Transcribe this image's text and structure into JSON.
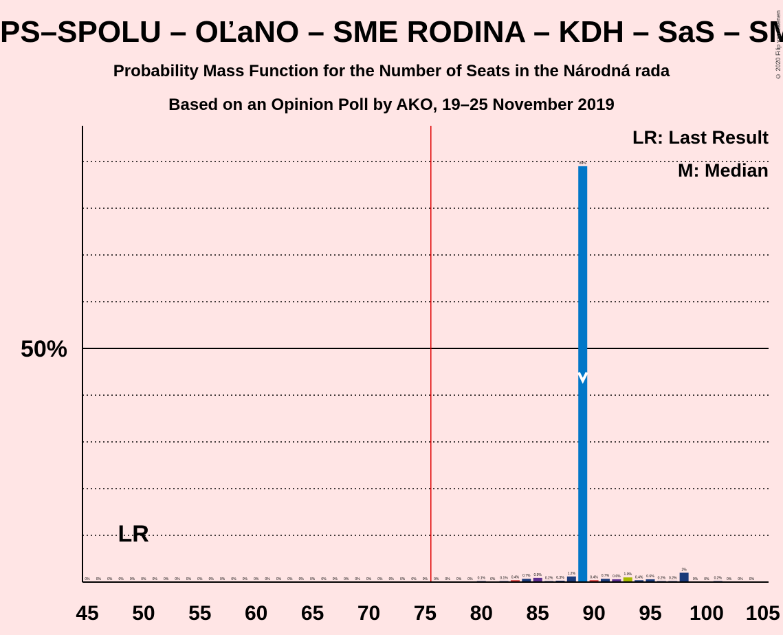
{
  "header": {
    "title": "PS–SPOLU – OĽaNO – SME RODINA – KDH – SaS – SMK",
    "subtitle1": "Probability Mass Function for the Number of Seats in the Národná rada",
    "subtitle2": "Based on an Opinion Poll by AKO, 19–25 November 2019",
    "copyright": "© 2020 Filip van Laenen"
  },
  "legend": {
    "lr": "LR: Last Result",
    "median": "M: Median"
  },
  "colors": {
    "background": "#ffe5e5",
    "majority_line": "#e00000",
    "main_bar": "#0077c8",
    "navy": "#1b3a7a",
    "red": "#d32f2f",
    "purple": "#5b2d8e",
    "olive": "#a6b800"
  },
  "chart_data": {
    "type": "bar",
    "xlabel": "",
    "ylabel": "",
    "xlim": [
      45,
      105
    ],
    "ylim": [
      0,
      100
    ],
    "x_ticks": [
      45,
      50,
      55,
      60,
      65,
      70,
      75,
      80,
      85,
      90,
      95,
      100,
      105
    ],
    "x_tick_labels": [
      "45",
      "50",
      "55",
      "60",
      "65",
      "70",
      "75",
      "80",
      "85",
      "90",
      "95",
      "100",
      "105"
    ],
    "y_tick_label": "50%",
    "y_tick_value": 50,
    "gridlines_dotted": [
      10,
      20,
      30,
      40,
      60,
      70,
      80,
      90
    ],
    "majority_seat": 76,
    "last_result": {
      "seat": 48,
      "label": "LR"
    },
    "median": {
      "seat": 89,
      "label": "M"
    },
    "zero_label_seats": [
      45,
      46,
      47,
      48,
      49,
      50,
      51,
      52,
      53,
      54,
      55,
      56,
      57,
      58,
      59,
      60,
      61,
      62,
      63,
      64,
      65,
      66,
      67,
      68,
      69,
      70,
      71,
      72,
      73,
      74,
      75,
      76,
      77,
      78,
      79,
      81,
      99,
      100,
      102,
      103,
      104
    ],
    "zero_label_text": "0%",
    "bars": [
      {
        "seat": 80,
        "value": 0.1,
        "label": "0.1%",
        "color": "navy"
      },
      {
        "seat": 82,
        "value": 0.1,
        "label": "0.1%",
        "color": "navy"
      },
      {
        "seat": 83,
        "value": 0.4,
        "label": "0.4%",
        "color": "red"
      },
      {
        "seat": 84,
        "value": 0.7,
        "label": "0.7%",
        "color": "navy"
      },
      {
        "seat": 85,
        "value": 0.9,
        "label": "0.9%",
        "color": "purple"
      },
      {
        "seat": 86,
        "value": 0.2,
        "label": "0.2%",
        "color": "navy"
      },
      {
        "seat": 87,
        "value": 0.3,
        "label": "0.3%",
        "color": "navy"
      },
      {
        "seat": 88,
        "value": 1.2,
        "label": "1.2%",
        "color": "navy"
      },
      {
        "seat": 89,
        "value": 89,
        "label": "89%",
        "color": "main_bar"
      },
      {
        "seat": 90,
        "value": 0.4,
        "label": "0.4%",
        "color": "red"
      },
      {
        "seat": 91,
        "value": 0.7,
        "label": "0.7%",
        "color": "navy"
      },
      {
        "seat": 92,
        "value": 0.6,
        "label": "0.6%",
        "color": "purple"
      },
      {
        "seat": 93,
        "value": 1.0,
        "label": "1.0%",
        "color": "olive"
      },
      {
        "seat": 94,
        "value": 0.4,
        "label": "0.4%",
        "color": "navy"
      },
      {
        "seat": 95,
        "value": 0.6,
        "label": "0.6%",
        "color": "navy"
      },
      {
        "seat": 96,
        "value": 0.2,
        "label": "0.2%",
        "color": "navy"
      },
      {
        "seat": 97,
        "value": 0.2,
        "label": "0.2%",
        "color": "navy"
      },
      {
        "seat": 98,
        "value": 2,
        "label": "2%",
        "color": "navy"
      },
      {
        "seat": 101,
        "value": 0.2,
        "label": "0.2%",
        "color": "navy"
      }
    ]
  }
}
